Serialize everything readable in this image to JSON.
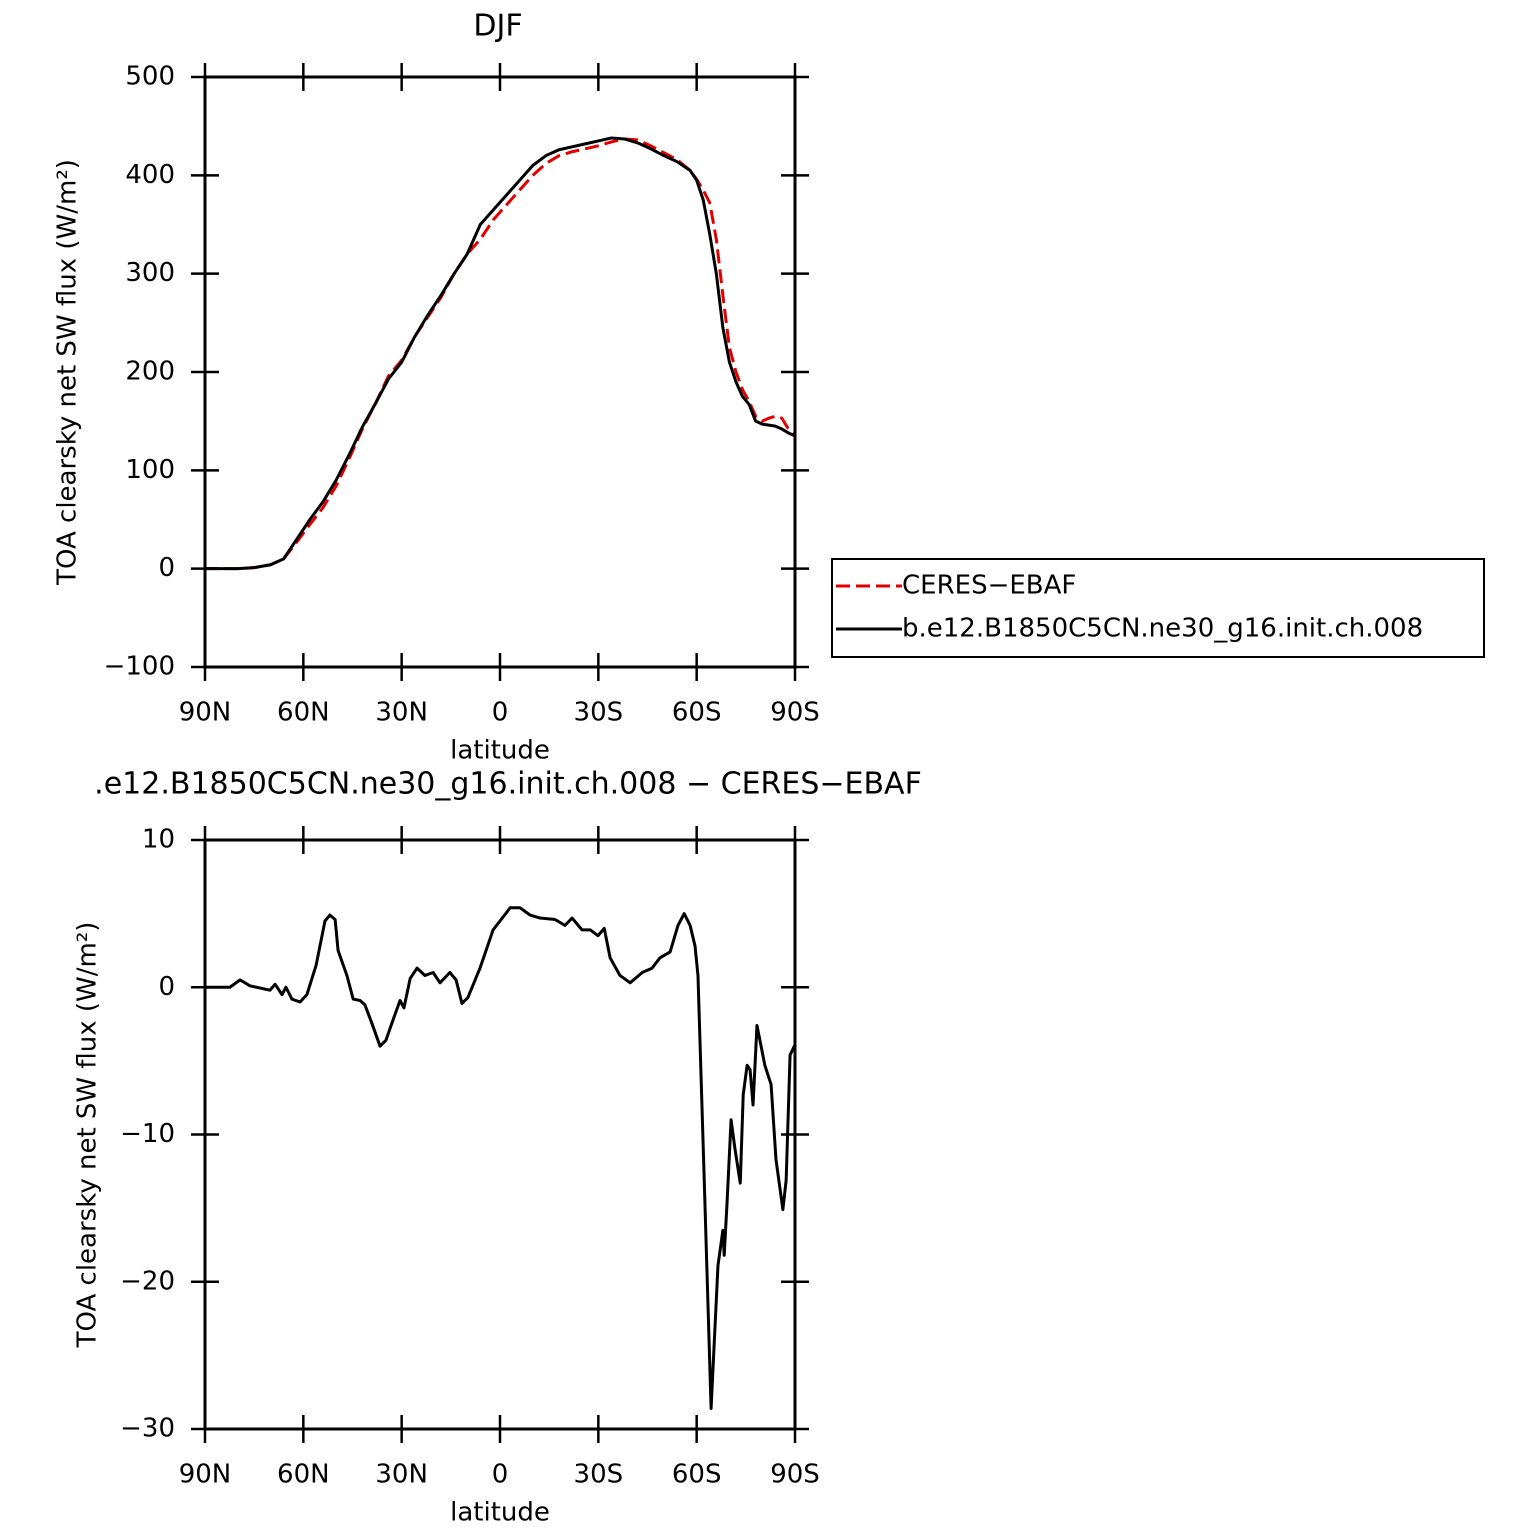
{
  "chart_data": [
    {
      "type": "line",
      "title": "DJF",
      "xlabel": "latitude",
      "ylabel": "TOA clearsky net SW flux (W/m²)",
      "xlim": [
        90,
        -90
      ],
      "xticks": [
        {
          "value": 90,
          "label": "90N"
        },
        {
          "value": 60,
          "label": "60N"
        },
        {
          "value": 30,
          "label": "30N"
        },
        0,
        {
          "value": -30,
          "label": "30S"
        },
        {
          "value": -60,
          "label": "60S"
        },
        {
          "value": -90,
          "label": "90S"
        }
      ],
      "ylim": [
        -100,
        500
      ],
      "yticks": [
        {
          "value": -100,
          "label": "−100"
        },
        0,
        100,
        200,
        300,
        400,
        500
      ],
      "legend": "right",
      "x": [
        90,
        85,
        80,
        75,
        70,
        66,
        62,
        58,
        54,
        50,
        46,
        42,
        38,
        34,
        30,
        26,
        22,
        18,
        14,
        10,
        6,
        2,
        -2,
        -6,
        -10,
        -14,
        -18,
        -22,
        -26,
        -30,
        -34,
        -38,
        -42,
        -46,
        -50,
        -54,
        -58,
        -60,
        -62,
        -64,
        -66,
        -68,
        -70,
        -72,
        -74,
        -76,
        -78,
        -80,
        -82,
        -84,
        -86,
        -88,
        -90
      ],
      "series": [
        {
          "name": "CERES−EBAF",
          "color": "#e00000",
          "dashed": true,
          "values": [
            0,
            0,
            0,
            1,
            4,
            10,
            27,
            45,
            62,
            84,
            112,
            142,
            168,
            196,
            212,
            236,
            256,
            276,
            300,
            320,
            335,
            355,
            370,
            385,
            400,
            412,
            420,
            424,
            427,
            430,
            434,
            437,
            436,
            430,
            423,
            416,
            405,
            396,
            385,
            372,
            335,
            278,
            225,
            200,
            182,
            170,
            155,
            150,
            153,
            155,
            153,
            142,
            138
          ]
        },
        {
          "name": "b.e12.B1850C5CN.ne30_g16.init.ch.008",
          "color": "#000000",
          "dashed": false,
          "values": [
            0,
            0,
            0,
            1,
            4,
            10,
            30,
            50,
            68,
            90,
            116,
            144,
            168,
            193,
            210,
            236,
            258,
            278,
            300,
            320,
            350,
            365,
            380,
            395,
            410,
            420,
            426,
            429,
            432,
            435,
            438,
            437,
            433,
            427,
            420,
            414,
            405,
            395,
            375,
            340,
            300,
            245,
            210,
            190,
            175,
            167,
            150,
            147,
            146,
            145,
            142,
            138,
            135
          ]
        }
      ]
    },
    {
      "type": "line",
      "title": ".e12.B1850C5CN.ne30_g16.init.ch.008 − CERES−EBAF",
      "xlabel": "latitude",
      "ylabel": "TOA clearsky net SW flux (W/m²)",
      "xlim": [
        90,
        -90
      ],
      "xticks": [
        {
          "value": 90,
          "label": "90N"
        },
        {
          "value": 60,
          "label": "60N"
        },
        {
          "value": 30,
          "label": "30N"
        },
        0,
        {
          "value": -30,
          "label": "30S"
        },
        {
          "value": -60,
          "label": "60S"
        },
        {
          "value": -90,
          "label": "90S"
        }
      ],
      "ylim": [
        -30,
        10
      ],
      "yticks": [
        {
          "value": -30,
          "label": "−30"
        },
        {
          "value": -20,
          "label": "−20"
        },
        {
          "value": -10,
          "label": "−10"
        },
        0,
        10
      ],
      "x": [
        90,
        82.4,
        79.3,
        76.3,
        70.2,
        68.6,
        66.5,
        65.3,
        63.5,
        61,
        58.9,
        56.1,
        53.4,
        51.9,
        50.3,
        49.4,
        46.7,
        44.8,
        42.7,
        41.2,
        39,
        36.6,
        34.8,
        32.6,
        30.5,
        29.3,
        27.4,
        25.3,
        22.9,
        20.4,
        18.3,
        15.3,
        13.4,
        11.6,
        9.8,
        6.1,
        2.1,
        0,
        -3.1,
        -6.1,
        -9.2,
        -12.2,
        -16.8,
        -19.8,
        -22,
        -25,
        -27.5,
        -29.9,
        -31.8,
        -33.6,
        -36.6,
        -39.7,
        -43.4,
        -46.4,
        -48.8,
        -51.9,
        -54.3,
        -56.2,
        -58,
        -59.5,
        -60.4,
        -62.5,
        -64.4,
        -66.5,
        -68,
        -68.4,
        -69.3,
        -70.5,
        -71.7,
        -73.3,
        -74.2,
        -75.4,
        -76.3,
        -77.2,
        -78.4,
        -79.3,
        -80.8,
        -82.7,
        -84.2,
        -86.3,
        -87.3,
        -88.5,
        -90
      ],
      "series": [
        {
          "name": "b.e12.B1850C5CN.ne30_g16.init.ch.008 − CERES−EBAF",
          "color": "#000000",
          "dashed": false,
          "values": [
            0,
            0,
            0.5,
            0.1,
            -0.2,
            0.2,
            -0.5,
            0,
            -0.8,
            -1,
            -0.5,
            1.5,
            4.5,
            4.9,
            4.6,
            2.5,
            0.8,
            -0.8,
            -0.9,
            -1.2,
            -2.5,
            -4,
            -3.6,
            -2.2,
            -0.9,
            -1.4,
            0.6,
            1.3,
            0.8,
            1,
            0.3,
            1,
            0.5,
            -1.1,
            -0.7,
            1.3,
            3.9,
            4.5,
            5.4,
            5.4,
            4.9,
            4.7,
            4.6,
            4.2,
            4.7,
            3.9,
            3.9,
            3.5,
            4,
            2,
            0.8,
            0.3,
            1,
            1.3,
            2,
            2.4,
            4.2,
            5,
            4.2,
            2.8,
            0.8,
            -14.5,
            -28.6,
            -18.9,
            -16.5,
            -18.2,
            -14.5,
            -9,
            -11,
            -13.3,
            -7.3,
            -5.3,
            -5.6,
            -8,
            -2.6,
            -3.6,
            -5.3,
            -6.6,
            -11.7,
            -15.1,
            -13.1,
            -4.6,
            -3.9
          ]
        }
      ]
    }
  ]
}
